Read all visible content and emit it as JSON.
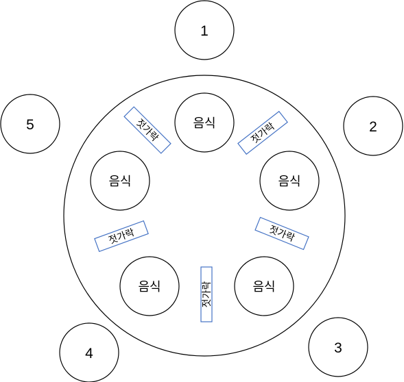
{
  "seats": [
    {
      "label": "1"
    },
    {
      "label": "2"
    },
    {
      "label": "3"
    },
    {
      "label": "4"
    },
    {
      "label": "5"
    }
  ],
  "foods": [
    {
      "label": "음식"
    },
    {
      "label": "음식"
    },
    {
      "label": "음식"
    },
    {
      "label": "음식"
    },
    {
      "label": "음식"
    }
  ],
  "chopsticks": [
    {
      "label": "젓가락"
    },
    {
      "label": "젓가락"
    },
    {
      "label": "젓가락"
    },
    {
      "label": "젓가락"
    },
    {
      "label": "젓가락"
    }
  ],
  "colors": {
    "outline": "#000000",
    "chopstick_border": "#4472c4",
    "background": "#ffffff"
  }
}
